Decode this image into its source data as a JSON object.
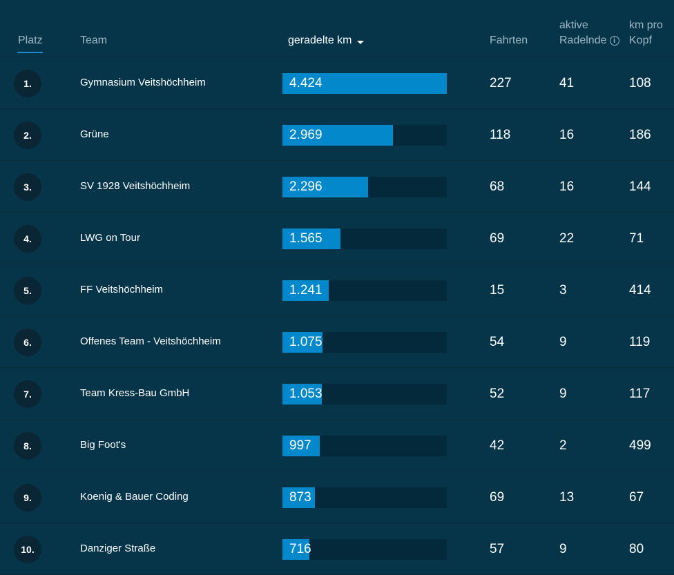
{
  "header": {
    "rank": "Platz",
    "team": "Team",
    "km": "geradelte km",
    "rides": "Fahrten",
    "active_line1": "aktive",
    "active_line2": "Radelnde",
    "kmpp_line1": "km pro",
    "kmpp_line2": "Kopf",
    "info_icon": "i"
  },
  "max_km": 4424,
  "rows": [
    {
      "rank": "1.",
      "team": "Gymnasium Veitshöchheim",
      "km": "4.424",
      "km_value": 4424,
      "rides": "227",
      "active": "41",
      "kmpp": "108"
    },
    {
      "rank": "2.",
      "team": "Grüne",
      "km": "2.969",
      "km_value": 2969,
      "rides": "118",
      "active": "16",
      "kmpp": "186"
    },
    {
      "rank": "3.",
      "team": "SV 1928 Veitshöchheim",
      "km": "2.296",
      "km_value": 2296,
      "rides": "68",
      "active": "16",
      "kmpp": "144"
    },
    {
      "rank": "4.",
      "team": "LWG on Tour",
      "km": "1.565",
      "km_value": 1565,
      "rides": "69",
      "active": "22",
      "kmpp": "71"
    },
    {
      "rank": "5.",
      "team": "FF Veitshöchheim",
      "km": "1.241",
      "km_value": 1241,
      "rides": "15",
      "active": "3",
      "kmpp": "414"
    },
    {
      "rank": "6.",
      "team": "Offenes Team - Veitshöchheim",
      "km": "1.075",
      "km_value": 1075,
      "rides": "54",
      "active": "9",
      "kmpp": "119"
    },
    {
      "rank": "7.",
      "team": "Team Kress-Bau GmbH",
      "km": "1.053",
      "km_value": 1053,
      "rides": "52",
      "active": "9",
      "kmpp": "117"
    },
    {
      "rank": "8.",
      "team": "Big Foot's",
      "km": "997",
      "km_value": 997,
      "rides": "42",
      "active": "2",
      "kmpp": "499"
    },
    {
      "rank": "9.",
      "team": "Koenig & Bauer Coding",
      "km": "873",
      "km_value": 873,
      "rides": "69",
      "active": "13",
      "kmpp": "67"
    },
    {
      "rank": "10.",
      "team": "Danziger Straße",
      "km": "716",
      "km_value": 716,
      "rides": "57",
      "active": "9",
      "kmpp": "80"
    }
  ],
  "colors": {
    "background": "#06354a",
    "bar_fill": "#0488cc",
    "bar_track": "#04293a",
    "badge": "#0a2534",
    "active_underline": "#1a8ad0"
  }
}
